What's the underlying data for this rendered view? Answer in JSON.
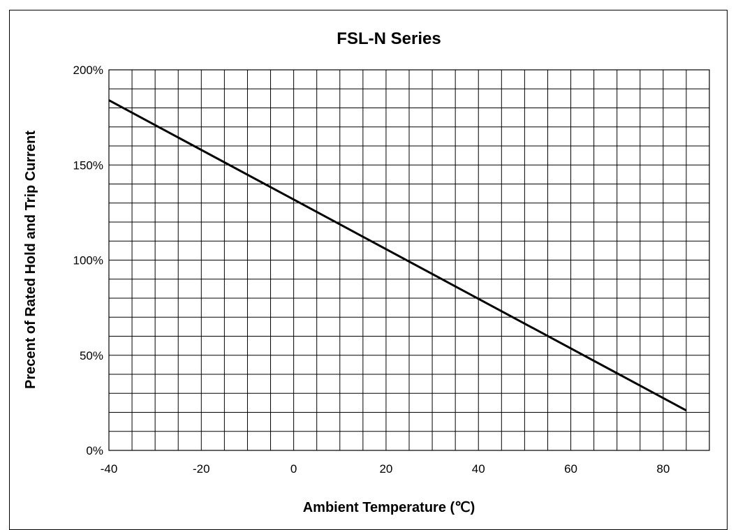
{
  "chart_data": {
    "type": "line",
    "title": "FSL-N Series",
    "xlabel": "Ambient Temperature (℃)",
    "ylabel": "Precent of Rated Hold and Trip Current",
    "xlim": [
      -40,
      90
    ],
    "ylim": [
      0,
      200
    ],
    "x_ticks": [
      -40,
      -20,
      0,
      20,
      40,
      60,
      80
    ],
    "x_tick_labels": [
      "-40",
      "-20",
      "0",
      "20",
      "40",
      "60",
      "80"
    ],
    "y_ticks": [
      0,
      50,
      100,
      150,
      200
    ],
    "y_tick_labels": [
      "0%",
      "50%",
      "100%",
      "150%",
      "200%"
    ],
    "grid": true,
    "grid_x_step": 5,
    "grid_y_step": 10,
    "series": [
      {
        "x": [
          -40,
          85
        ],
        "y": [
          184,
          21
        ],
        "color": "#000000"
      }
    ]
  }
}
